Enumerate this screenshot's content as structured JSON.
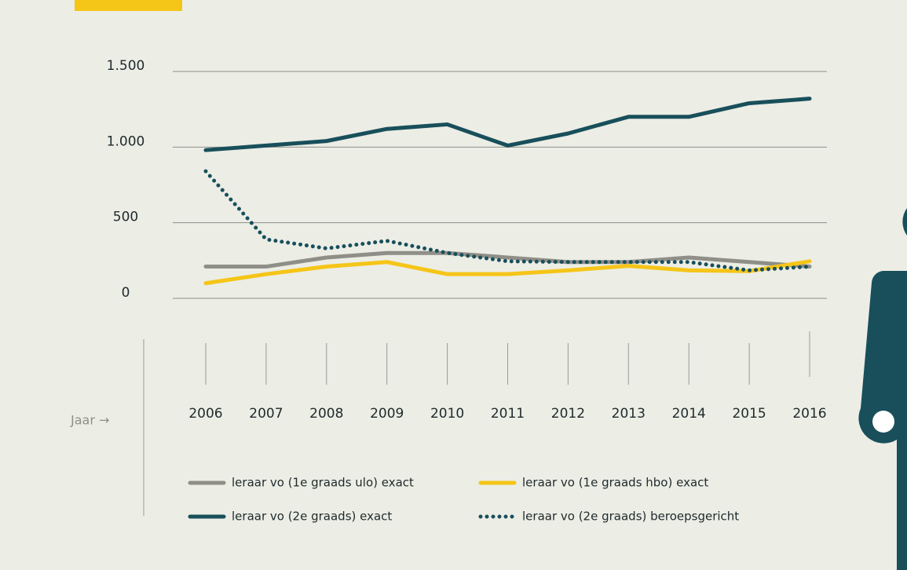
{
  "chart_data": {
    "type": "line",
    "xlabel": "Jaar →",
    "categories": [
      "2006",
      "2007",
      "2008",
      "2009",
      "2010",
      "2011",
      "2012",
      "2013",
      "2014",
      "2015",
      "2016"
    ],
    "series": [
      {
        "name": "leraar vo (1e graads ulo) exact",
        "color": "#8f8f88",
        "style": "solid",
        "values": [
          210,
          210,
          270,
          300,
          300,
          270,
          240,
          240,
          270,
          240,
          210
        ]
      },
      {
        "name": "leraar vo (1e graads hbo) exact",
        "color": "#f5c518",
        "style": "solid",
        "values": [
          100,
          160,
          210,
          240,
          160,
          160,
          185,
          215,
          185,
          180,
          245
        ]
      },
      {
        "name": "leraar vo (2e graads) exact",
        "color": "#184f5b",
        "style": "solid",
        "values": [
          980,
          1010,
          1040,
          1120,
          1150,
          1010,
          1090,
          1200,
          1200,
          1290,
          1320
        ]
      },
      {
        "name": "leraar vo (2e graads) beroepsgericht",
        "color": "#184f5b",
        "style": "dotted",
        "values": [
          840,
          390,
          330,
          380,
          300,
          245,
          240,
          240,
          240,
          185,
          210
        ]
      }
    ],
    "ylim": [
      0,
      1500
    ],
    "yticks": [
      0,
      500,
      {
        "value": 1000,
        "label": "1.000"
      },
      {
        "value": 1500,
        "label": "1.500"
      }
    ],
    "grid": true
  }
}
